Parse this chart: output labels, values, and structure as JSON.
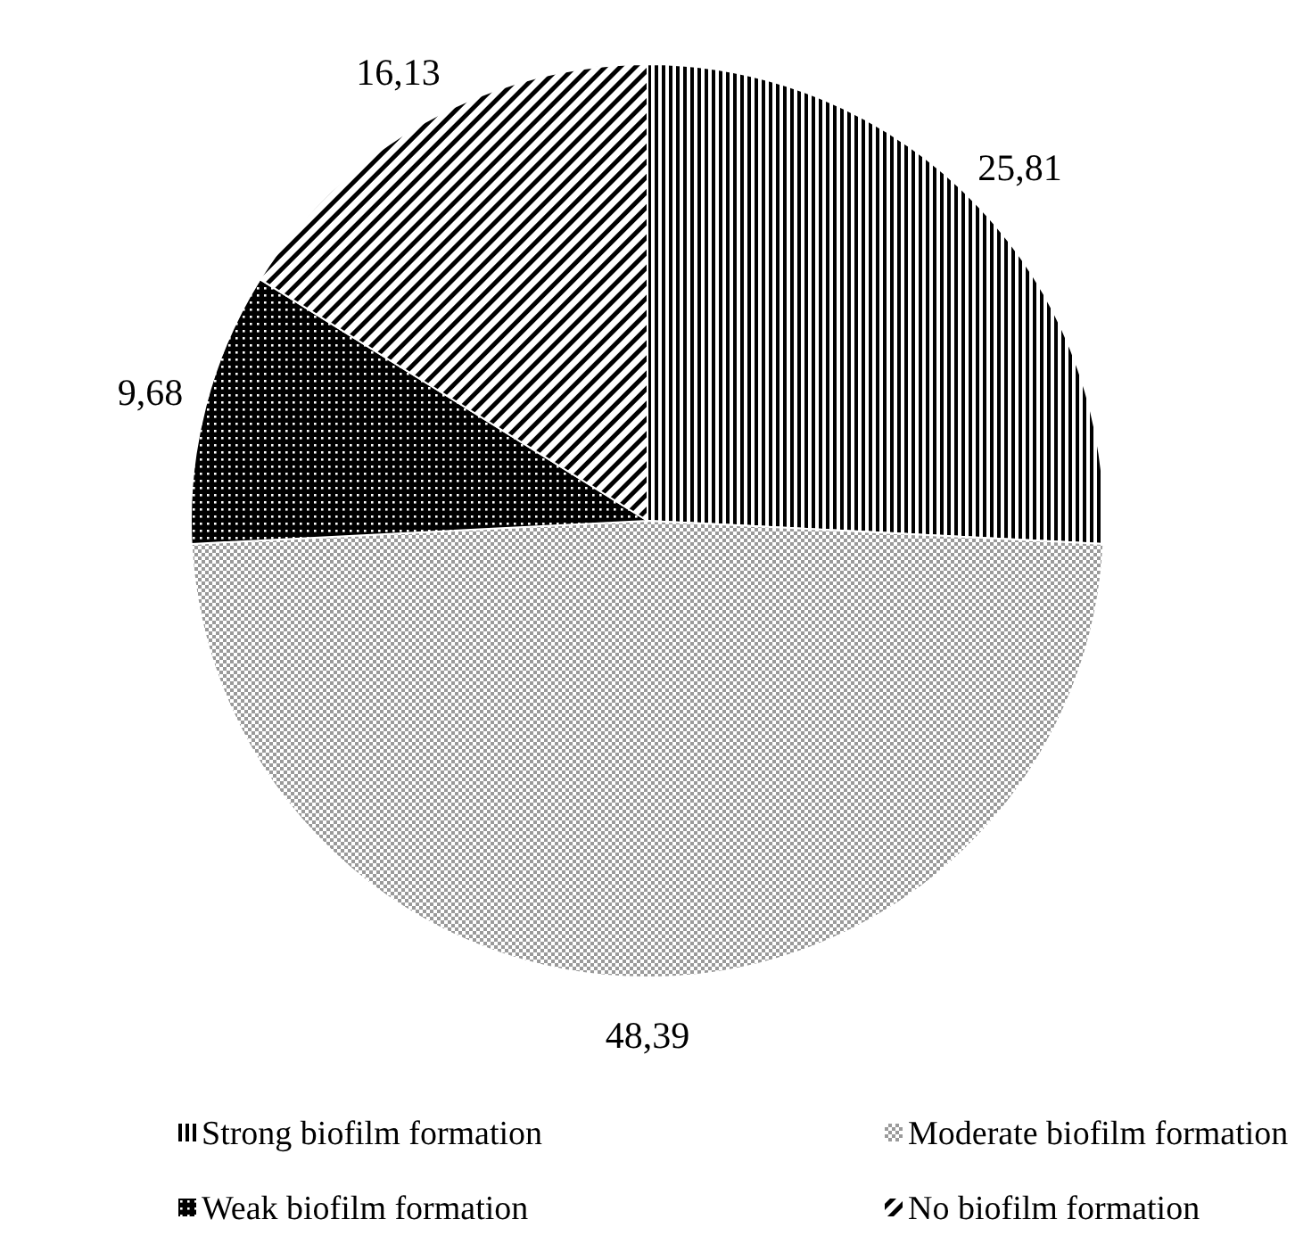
{
  "chart_data": {
    "type": "pie",
    "categories": [
      "Strong biofilm formation",
      "Moderate biofilm formation",
      "Weak biofilm formation",
      "No biofilm formation"
    ],
    "values": [
      25.81,
      48.39,
      9.68,
      16.13
    ],
    "value_labels": [
      "25,81",
      "48,39",
      "9,68",
      "16,13"
    ],
    "colors": [
      "#000000",
      "#9a9a9a",
      "#000000",
      "#000000"
    ],
    "legend": "bottom"
  }
}
